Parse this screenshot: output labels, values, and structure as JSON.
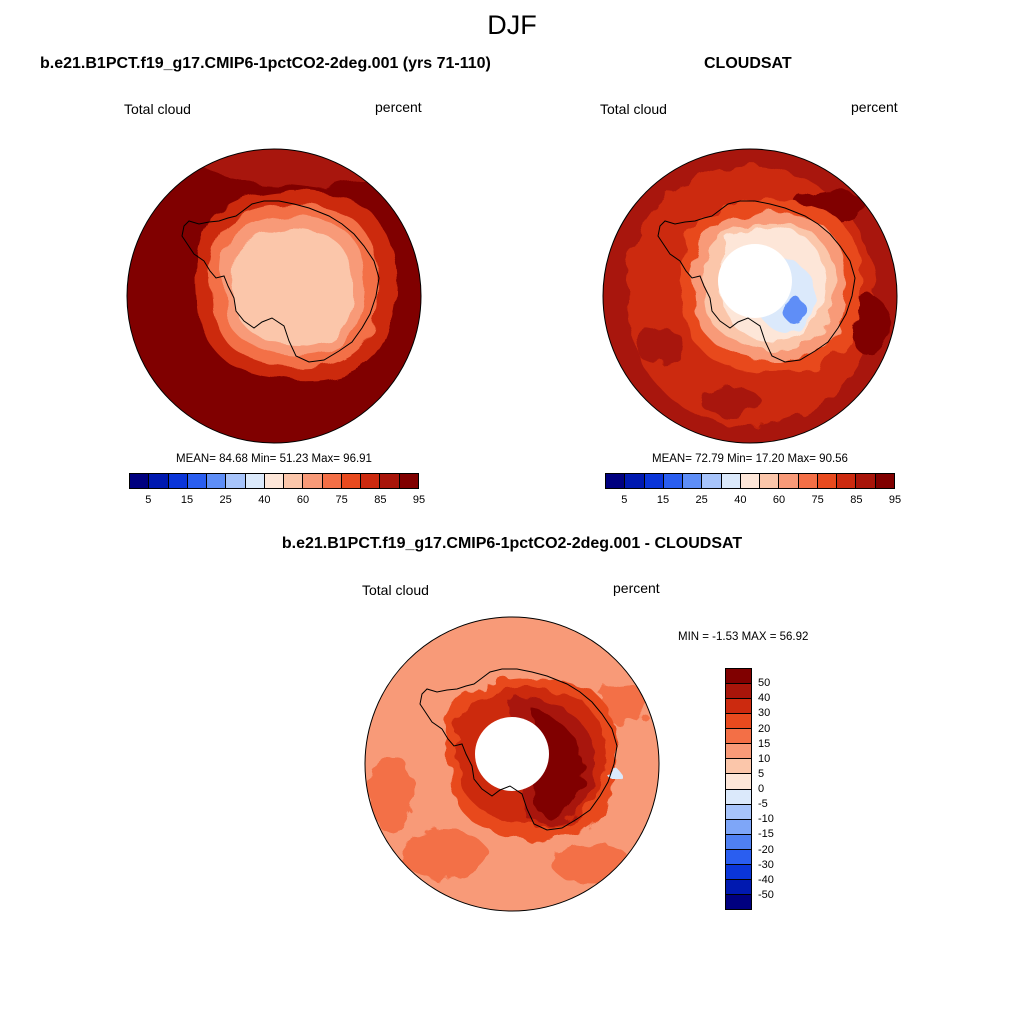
{
  "title": "DJF",
  "panels": [
    {
      "title": "b.e21.B1PCT.f19_g17.CMIP6-1pctCO2-2deg.001 (yrs 71-110)",
      "variable": "Total cloud",
      "units": "percent",
      "stats": "MEAN=  84.68  Min=  51.23  Max=  96.91",
      "fields": {
        "ocean": 92,
        "hot_spots": [
          88,
          95,
          95,
          95,
          90
        ],
        "rings": [
          82,
          72,
          64
        ],
        "interior": 58,
        "inner_lows": [
          55,
          55
        ]
      }
    },
    {
      "title": "CLOUDSAT",
      "variable": "Total cloud",
      "units": "percent",
      "stats": "MEAN=  72.79  Min=  17.20  Max=  90.56",
      "fields": {
        "ocean": 82,
        "outer_band": 87,
        "hot_spots": [
          90,
          86,
          90,
          88
        ],
        "rings": [
          76,
          66,
          58
        ],
        "interior": 45,
        "lows": [
          38,
          30,
          20
        ]
      }
    }
  ],
  "shared_colorbar": {
    "ticks": [
      "5",
      "15",
      "25",
      "40",
      "60",
      "75",
      "85",
      "95"
    ],
    "colors": [
      "#00007f",
      "#0019b0",
      "#0a35d8",
      "#2a5ef0",
      "#5e8ef7",
      "#a7c4fb",
      "#dbe9fb",
      "#fde6d8",
      "#fbc6aa",
      "#f89a78",
      "#f36f46",
      "#e84a1e",
      "#cc2a0f",
      "#a8150a",
      "#800000"
    ]
  },
  "difference_panel": {
    "title": "b.e21.B1PCT.f19_g17.CMIP6-1pctCO2-2deg.001 - CLOUDSAT",
    "variable": "Total cloud",
    "units": "percent",
    "stats": "MIN =  -1.53 MAX =  56.92",
    "fields": {
      "ocean": 11,
      "ocean_patches": [
        17,
        17,
        17,
        17
      ],
      "rings": [
        24,
        34,
        44,
        52
      ],
      "small_negative": -2
    },
    "colorbar": {
      "ticks": [
        "50",
        "40",
        "30",
        "20",
        "15",
        "10",
        "5",
        "0",
        "-5",
        "-10",
        "-15",
        "-20",
        "-30",
        "-40",
        "-50"
      ],
      "colors": [
        "#800000",
        "#a8150a",
        "#cc2a0f",
        "#e84a1e",
        "#f36f46",
        "#f89a78",
        "#fbc6aa",
        "#fde6d8",
        "#dbe9fb",
        "#a7c4fb",
        "#7ea6f8",
        "#4f80f2",
        "#2a5ef0",
        "#0a35d8",
        "#0019b0",
        "#00007f"
      ]
    }
  }
}
